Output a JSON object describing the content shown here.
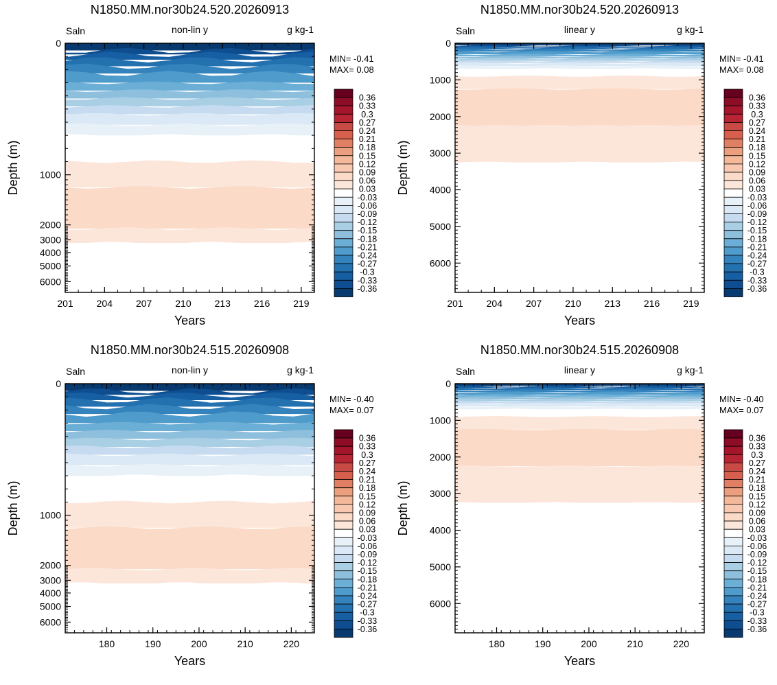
{
  "colorbar": {
    "labels": [
      "0.36",
      "0.33",
      "0.3",
      "0.27",
      "0.24",
      "0.21",
      "0.18",
      "0.15",
      "0.12",
      "0.09",
      "0.06",
      "0.03",
      "-0.03",
      "-0.06",
      "-0.09",
      "-0.12",
      "-0.15",
      "-0.18",
      "-0.21",
      "-0.24",
      "-0.27",
      "-0.3",
      "-0.33",
      "-0.36"
    ],
    "colors": [
      "#67001f",
      "#8c0d25",
      "#a5152b",
      "#b72434",
      "#c74a45",
      "#d6604d",
      "#e07f63",
      "#eb9f7e",
      "#f4b89a",
      "#f8c9b0",
      "#fbdac7",
      "#fce5d9",
      "#ffffff",
      "#e8f1f7",
      "#dbe9f6",
      "#c6dbef",
      "#a9cfe5",
      "#8ebfdd",
      "#6baed6",
      "#4f9bcb",
      "#3583bd",
      "#2471b0",
      "#175fa3",
      "#0e4d8f",
      "#083a6f"
    ]
  },
  "chart_data": [
    {
      "type": "heatmap",
      "title": "N1850.MM.nor30b24.520.20260913",
      "left_label": "Saln",
      "center_label": "non-lin y",
      "right_label": "g kg-1",
      "xlabel": "Years",
      "ylabel": "Depth (m)",
      "min_text": "MIN= -0.41",
      "max_text": "MAX=  0.08",
      "y_scale": "non-linear (stretched upper ocean)",
      "xlim": [
        201,
        220
      ],
      "ylim": [
        0,
        6600
      ],
      "xticks": [
        "201",
        "204",
        "207",
        "210",
        "213",
        "216",
        "219"
      ],
      "yticks": [
        "0",
        "1000",
        "2000",
        "3000",
        "4000",
        "5000",
        "6000"
      ],
      "min": -0.41,
      "max": 0.08
    },
    {
      "type": "heatmap",
      "title": "N1850.MM.nor30b24.520.20260913",
      "left_label": "Saln",
      "center_label": "linear y",
      "right_label": "g kg-1",
      "xlabel": "Years",
      "ylabel": "Depth (m)",
      "min_text": "MIN= -0.41",
      "max_text": "MAX=  0.08",
      "y_scale": "linear",
      "xlim": [
        201,
        220
      ],
      "ylim": [
        0,
        6800
      ],
      "xticks": [
        "201",
        "204",
        "207",
        "210",
        "213",
        "216",
        "219"
      ],
      "yticks": [
        "0",
        "1000",
        "2000",
        "3000",
        "4000",
        "5000",
        "6000"
      ],
      "min": -0.41,
      "max": 0.08
    },
    {
      "type": "heatmap",
      "title": "N1850.MM.nor30b24.515.20260908",
      "left_label": "Saln",
      "center_label": "non-lin y",
      "right_label": "g kg-1",
      "xlabel": "Years",
      "ylabel": "Depth (m)",
      "min_text": "MIN= -0.40",
      "max_text": "MAX=  0.07",
      "y_scale": "non-linear (stretched upper ocean)",
      "xlim": [
        171,
        225
      ],
      "ylim": [
        0,
        6600
      ],
      "xticks": [
        "180",
        "190",
        "200",
        "210",
        "220"
      ],
      "yticks": [
        "0",
        "1000",
        "2000",
        "3000",
        "4000",
        "5000",
        "6000"
      ],
      "min": -0.4,
      "max": 0.07
    },
    {
      "type": "heatmap",
      "title": "N1850.MM.nor30b24.515.20260908",
      "left_label": "Saln",
      "center_label": "linear y",
      "right_label": "g kg-1",
      "xlabel": "Years",
      "ylabel": "Depth (m)",
      "min_text": "MIN= -0.40",
      "max_text": "MAX=  0.07",
      "y_scale": "linear",
      "xlim": [
        171,
        225
      ],
      "ylim": [
        0,
        6800
      ],
      "xticks": [
        "180",
        "190",
        "200",
        "210",
        "220"
      ],
      "yticks": [
        "0",
        "1000",
        "2000",
        "3000",
        "4000",
        "5000",
        "6000"
      ],
      "min": -0.4,
      "max": 0.07
    }
  ]
}
